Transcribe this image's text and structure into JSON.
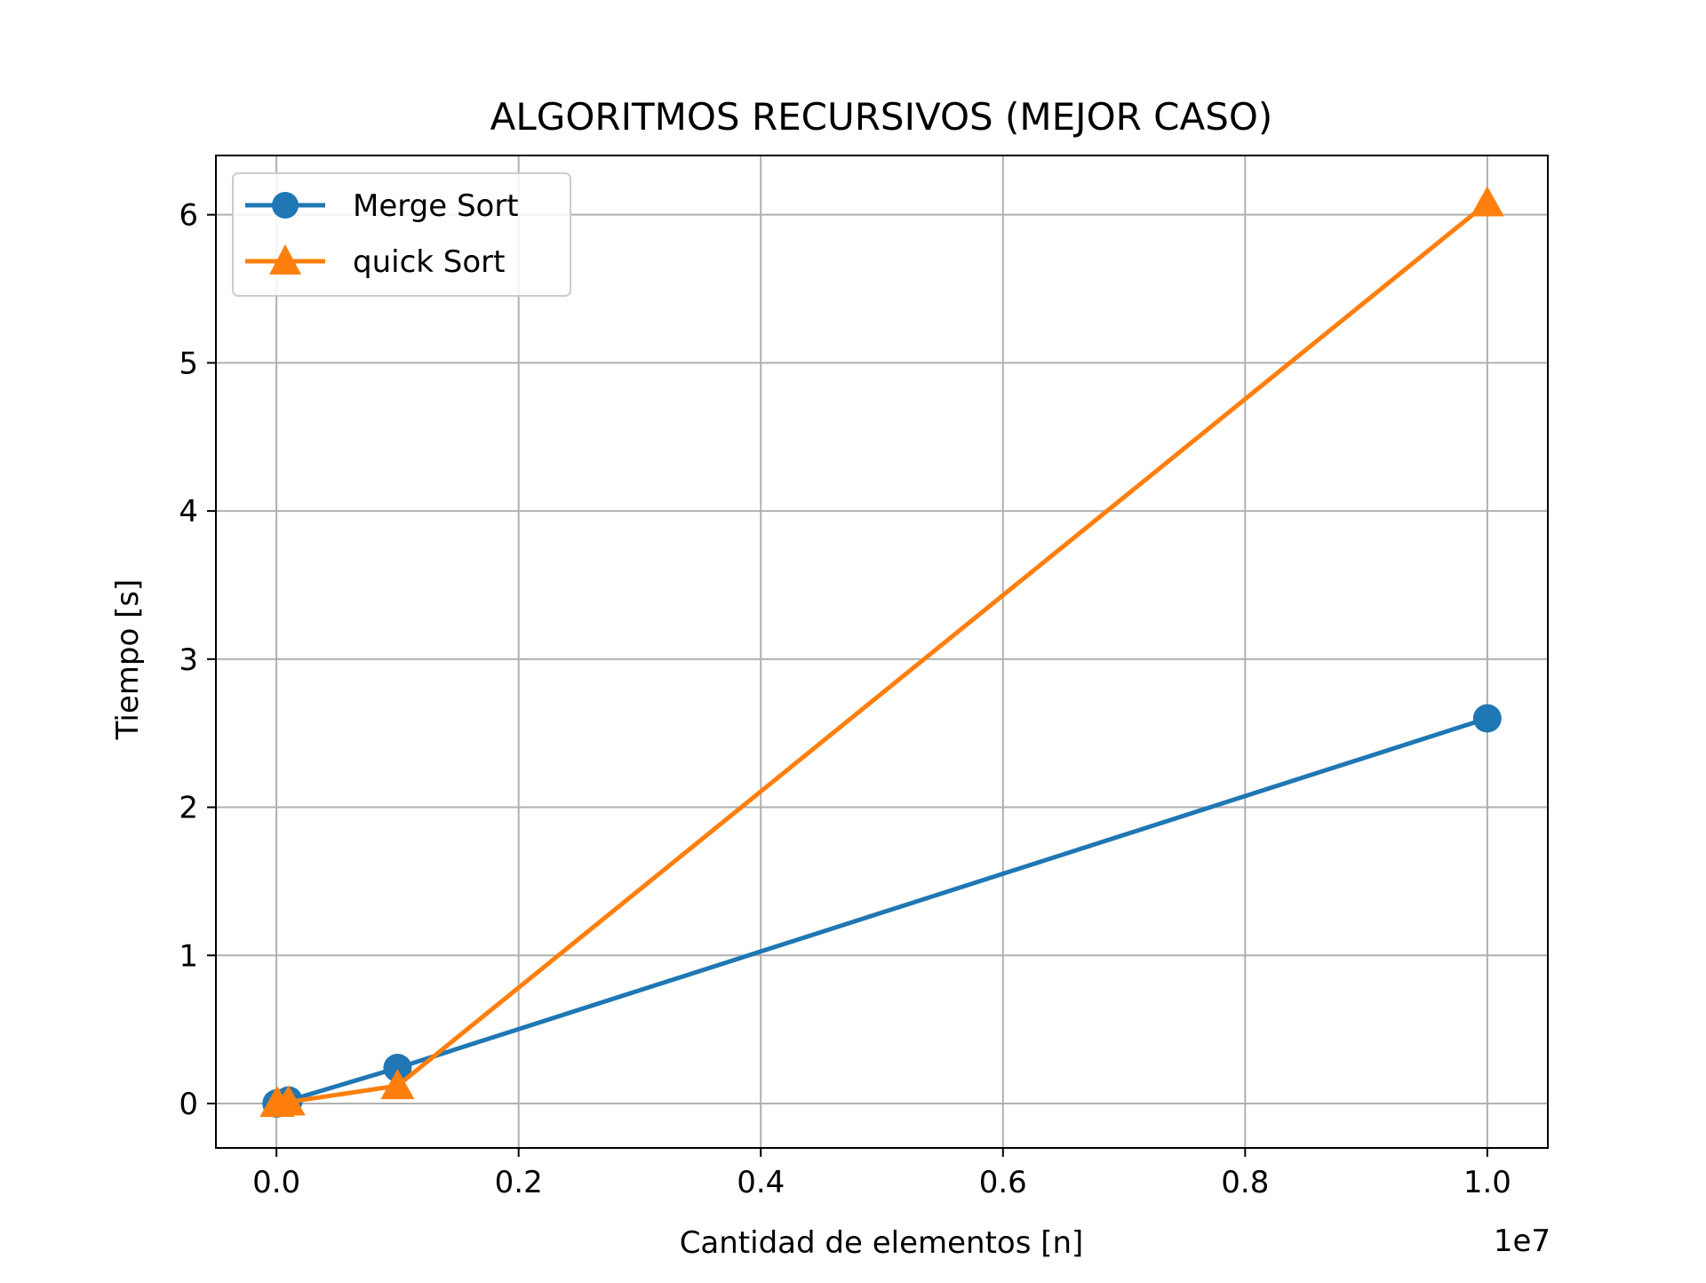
{
  "chart_data": {
    "type": "line",
    "title": "ALGORITMOS RECURSIVOS (MEJOR CASO)",
    "xlabel": "Cantidad de elementos [n]",
    "ylabel": "Tiempo [s]",
    "x_offset_label": "1e7",
    "xlim": [
      -0.05,
      1.05
    ],
    "ylim": [
      -0.3,
      6.4
    ],
    "x_unit_scale": 10000000,
    "xticks": [
      0.0,
      0.2,
      0.4,
      0.6,
      0.8,
      1.0
    ],
    "xtick_labels": [
      "0.0",
      "0.2",
      "0.4",
      "0.6",
      "0.8",
      "1.0"
    ],
    "yticks": [
      0,
      1,
      2,
      3,
      4,
      5,
      6
    ],
    "ytick_labels": [
      "0",
      "1",
      "2",
      "3",
      "4",
      "5",
      "6"
    ],
    "grid": true,
    "legend_position": "top-left",
    "x": [
      1000,
      10000,
      100000,
      1000000,
      10000000
    ],
    "series": [
      {
        "name": "Merge Sort",
        "marker": "circle",
        "color": "#1f77b4",
        "values": [
          0.0,
          0.002,
          0.02,
          0.24,
          2.6
        ]
      },
      {
        "name": "quick Sort",
        "marker": "triangle",
        "color": "#ff7f0e",
        "values": [
          0.0,
          0.001,
          0.01,
          0.12,
          6.08
        ]
      }
    ]
  }
}
